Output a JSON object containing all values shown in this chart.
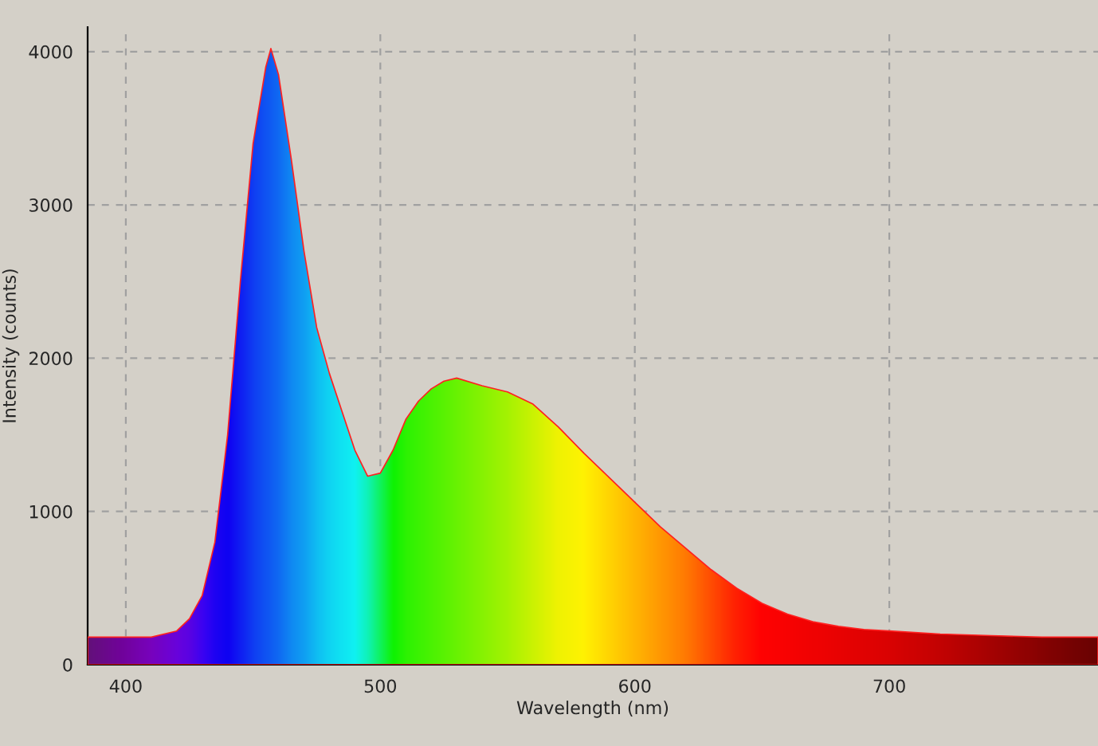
{
  "chart_data": {
    "type": "area",
    "xlabel": "Wavelength (nm)",
    "ylabel": "Intensity (counts)",
    "x": [
      385,
      400,
      410,
      420,
      425,
      430,
      435,
      440,
      445,
      450,
      455,
      457,
      460,
      465,
      470,
      475,
      480,
      485,
      490,
      495,
      500,
      505,
      510,
      515,
      520,
      525,
      530,
      540,
      550,
      560,
      570,
      580,
      590,
      600,
      610,
      620,
      630,
      640,
      650,
      660,
      670,
      680,
      690,
      700,
      720,
      740,
      760,
      782
    ],
    "values": [
      180,
      180,
      180,
      220,
      300,
      450,
      800,
      1500,
      2500,
      3400,
      3900,
      4020,
      3850,
      3300,
      2700,
      2200,
      1900,
      1650,
      1400,
      1230,
      1250,
      1400,
      1600,
      1720,
      1800,
      1850,
      1870,
      1820,
      1780,
      1700,
      1550,
      1380,
      1220,
      1060,
      900,
      760,
      620,
      500,
      400,
      330,
      280,
      250,
      230,
      220,
      200,
      190,
      180,
      180
    ],
    "colors": [
      "#5a1080",
      "#6a00a8",
      "#7000c8",
      "#6000e8",
      "#5000f0",
      "#3000ff",
      "#1000ff",
      "#0000ff",
      "#0020ff",
      "#0040ff",
      "#0058ff",
      "#0060ff",
      "#0070ff",
      "#0090ff",
      "#00a8ff",
      "#00c8ff",
      "#00e0ff",
      "#00f0ff",
      "#00ffff",
      "#00ffc0",
      "#00ff60",
      "#00ff00",
      "#20ff00",
      "#30ff00",
      "#40ff00",
      "#50ff00",
      "#60ff00",
      "#80ff00",
      "#a0ff00",
      "#c8ff00",
      "#f0ff00",
      "#ffff00",
      "#ffe000",
      "#ffc000",
      "#ffa000",
      "#ff8000",
      "#ff5000",
      "#ff2000",
      "#ff0000",
      "#f80000",
      "#f00000",
      "#e80000",
      "#e00000",
      "#d80000",
      "#c00000",
      "#a00000",
      "#800000",
      "#600000"
    ],
    "xlim": [
      385,
      782
    ],
    "ylim": [
      0,
      4160
    ],
    "xticks": [
      400,
      500,
      600,
      700
    ],
    "yticks": [
      0,
      1000,
      2000,
      3000,
      4000
    ],
    "color": "#ff2020",
    "grid": true,
    "line_style": "dashed"
  }
}
